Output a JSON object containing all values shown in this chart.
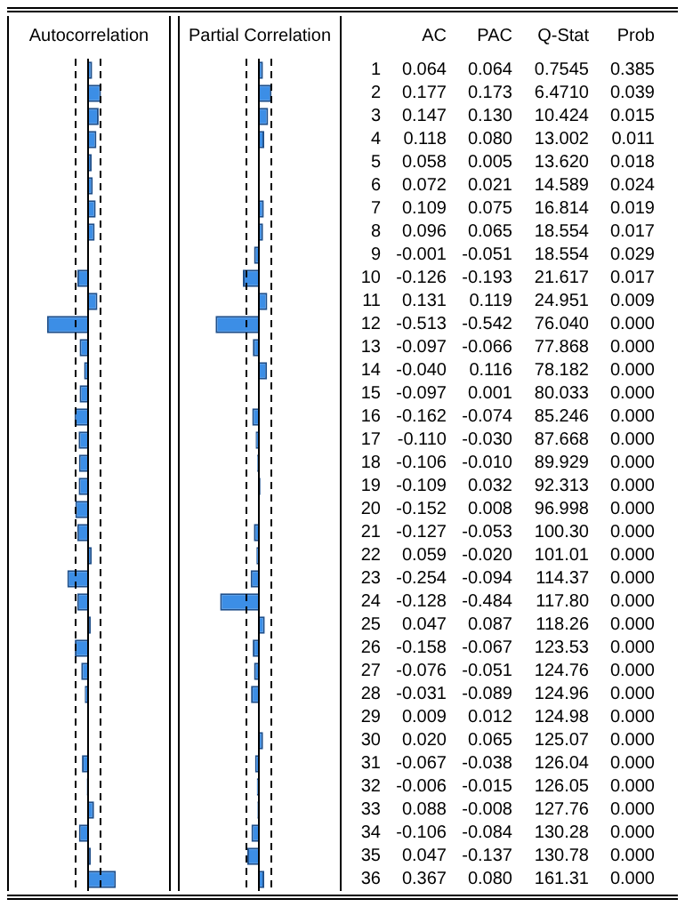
{
  "chart_data": [
    {
      "type": "bar",
      "orientation": "horizontal",
      "title": "Autocorrelation",
      "annotations": [
        "AC"
      ],
      "categories": [
        "1",
        "2",
        "3",
        "4",
        "5",
        "6",
        "7",
        "8",
        "9",
        "10",
        "11",
        "12",
        "13",
        "14",
        "15",
        "16",
        "17",
        "18",
        "19",
        "20",
        "21",
        "22",
        "23",
        "24",
        "25",
        "26",
        "27",
        "28",
        "29",
        "30",
        "31",
        "32",
        "33",
        "34",
        "35",
        "36"
      ],
      "color": "#3c8ee6",
      "xlim": [
        -1,
        1
      ],
      "tick_labels": false,
      "values": [
        0.064,
        0.177,
        0.147,
        0.118,
        0.058,
        0.072,
        0.109,
        0.096,
        -0.001,
        -0.126,
        0.131,
        -0.513,
        -0.097,
        -0.04,
        -0.097,
        -0.162,
        -0.11,
        -0.106,
        -0.109,
        -0.152,
        -0.127,
        0.059,
        -0.254,
        -0.128,
        0.047,
        -0.158,
        -0.076,
        -0.031,
        0.009,
        0.02,
        -0.067,
        -0.006,
        0.088,
        -0.106,
        0.047,
        0.367
      ],
      "value_labels": [
        "0.064",
        "0.177",
        "0.147",
        "0.118",
        "0.058",
        "0.072",
        "0.109",
        "0.096",
        "-0.001",
        "-0.126",
        "0.131",
        "-0.513",
        "-0.097",
        "-0.040",
        "-0.097",
        "-0.162",
        "-0.110",
        "-0.106",
        "-0.109",
        "-0.152",
        "-0.127",
        "0.059",
        "-0.254",
        "-0.128",
        "0.047",
        "-0.158",
        "-0.076",
        "-0.031",
        "0.009",
        "0.020",
        "-0.067",
        "-0.006",
        "0.088",
        "-0.106",
        "0.047",
        "0.367"
      ],
      "ref_lines": [
        {
          "axis": "x",
          "value": -0.15,
          "line_style": "dashed",
          "color": "#000000"
        },
        {
          "axis": "x",
          "value": 0.15,
          "line_style": "dashed",
          "color": "#000000"
        }
      ]
    },
    {
      "type": "bar",
      "orientation": "horizontal",
      "title": "Partial Correlation",
      "annotations": [
        "PAC"
      ],
      "categories": [
        null,
        null,
        null,
        null,
        null,
        null,
        null,
        null,
        null,
        null,
        null,
        null,
        null,
        null,
        null,
        null,
        null,
        null,
        null,
        null,
        null,
        null,
        null,
        null,
        null,
        null,
        null,
        null,
        null,
        null,
        null,
        null,
        null,
        null,
        null,
        null
      ],
      "color": "#3c8ee6",
      "xlim": [
        -1,
        1
      ],
      "tick_labels": false,
      "values": [
        0.064,
        0.173,
        0.13,
        0.08,
        0.005,
        0.021,
        0.075,
        0.065,
        -0.051,
        -0.193,
        0.119,
        -0.542,
        -0.066,
        0.116,
        0.001,
        -0.074,
        -0.03,
        -0.01,
        0.032,
        0.008,
        -0.053,
        -0.02,
        -0.094,
        -0.484,
        0.087,
        -0.067,
        -0.051,
        -0.089,
        0.012,
        0.065,
        -0.038,
        -0.015,
        -0.008,
        -0.084,
        -0.137,
        0.08
      ],
      "value_labels": [
        "0.064",
        "0.173",
        "0.130",
        "0.080",
        "0.005",
        "0.021",
        "0.075",
        "0.065",
        "-0.051",
        "-0.193",
        "0.119",
        "-0.542",
        "-0.066",
        "0.116",
        "0.001",
        "-0.074",
        "-0.030",
        "-0.010",
        "0.032",
        "0.008",
        "-0.053",
        "-0.020",
        "-0.094",
        "-0.484",
        "0.087",
        "-0.067",
        "-0.051",
        "-0.089",
        "0.012",
        "0.065",
        "-0.038",
        "-0.015",
        "-0.008",
        "-0.084",
        "-0.137",
        "0.080"
      ],
      "ref_lines": [
        {
          "axis": "x",
          "value": -0.15,
          "line_style": "dashed",
          "color": "#000000"
        },
        {
          "axis": "x",
          "value": 0.15,
          "line_style": "dashed",
          "color": "#000000"
        }
      ]
    },
    {
      "type": "other",
      "annotations": [
        "Q-Stat",
        "0.7545",
        "6.4710",
        "10.424",
        "13.002",
        "13.620",
        "14.589",
        "16.814",
        "18.554",
        "18.554",
        "21.617",
        "24.951",
        "76.040",
        "77.868",
        "78.182",
        "80.033",
        "85.246",
        "87.668",
        "89.929",
        "92.313",
        "96.998",
        "100.30",
        "101.01",
        "114.37",
        "117.80",
        "118.26",
        "123.53",
        "124.76",
        "124.96",
        "124.98",
        "125.07",
        "126.04",
        "126.05",
        "127.76",
        "130.28",
        "130.78",
        "161.31",
        "Prob",
        "0.385",
        "0.039",
        "0.015",
        "0.011",
        "0.018",
        "0.024",
        "0.019",
        "0.017",
        "0.029",
        "0.017",
        "0.009",
        "0.000",
        "0.000",
        "0.000",
        "0.000",
        "0.000",
        "0.000",
        "0.000",
        "0.000",
        "0.000",
        "0.000",
        "0.000",
        "0.000",
        "0.000",
        "0.000",
        "0.000",
        "0.000",
        "0.000",
        "0.000",
        "0.000",
        "0.000",
        "0.000",
        "0.000",
        "0.000",
        "0.000",
        "0.000"
      ]
    }
  ]
}
